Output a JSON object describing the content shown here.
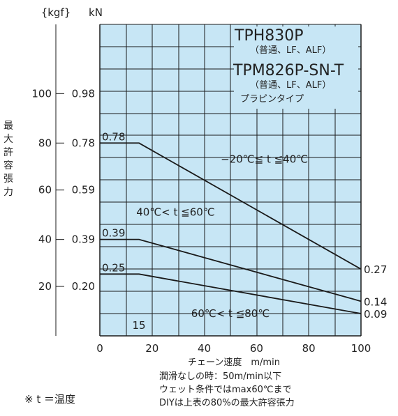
{
  "chart_data": {
    "type": "line",
    "unit_kgf": "{kgf}",
    "unit_kn": "kN",
    "ylabel_chars": [
      "最",
      "大",
      "許",
      "容",
      "張",
      "力"
    ],
    "xlabel": "チェーン速度　m/min",
    "title_lines": [
      {
        "text": "TPH830P",
        "role": "name"
      },
      {
        "text": "（普通、LF、ALF）",
        "role": "sub"
      },
      {
        "text": "TPM826P-SN-T",
        "role": "name"
      },
      {
        "text": "（普通、LF、ALF）",
        "role": "sub"
      },
      {
        "text": "プラピンタイプ",
        "role": "sub"
      }
    ],
    "xlim": [
      0,
      100
    ],
    "ylim_kn": [
      0,
      1.26
    ],
    "x_ticks": [
      "0",
      "20",
      "40",
      "60",
      "80",
      "100"
    ],
    "y_ticks": [
      {
        "kgf": "100",
        "kn": "0.98",
        "v": 0.98
      },
      {
        "kgf": "80",
        "kn": "0.78",
        "v": 0.78
      },
      {
        "kgf": "60",
        "kn": "0.59",
        "v": 0.59
      },
      {
        "kgf": "40",
        "kn": "0.39",
        "v": 0.39
      },
      {
        "kgf": "20",
        "kn": "0.20",
        "v": 0.2
      }
    ],
    "series": [
      {
        "name": "−20℃≦ t ≦40℃",
        "x": [
          0,
          15,
          100
        ],
        "y": [
          0.78,
          0.78,
          0.27
        ],
        "start_label": "0.78",
        "end_label": "0.27",
        "label_x": 63,
        "label_y": 0.715
      },
      {
        "name": "40℃< t ≦60℃",
        "x": [
          0,
          15,
          100
        ],
        "y": [
          0.39,
          0.39,
          0.14
        ],
        "start_label": "0.39",
        "end_label": "0.14",
        "label_x": 29,
        "label_y": 0.5
      },
      {
        "name": "60℃< t ≦80℃",
        "x": [
          0,
          15,
          100
        ],
        "y": [
          0.25,
          0.25,
          0.09
        ],
        "start_label": "0.25",
        "end_label": "0.09",
        "label_x": 50,
        "label_y": 0.09
      }
    ],
    "annotation_15": "15",
    "grid": true
  },
  "notes": [
    "潤滑なしの時：50m/min以下",
    "ウェット条件ではmax60℃まで",
    "DIYは上表の80%の最大許容張力"
  ],
  "footnote": "※ t ＝温度",
  "colors": {
    "plot_bg": "#c7e6f5",
    "grid": "#1a1a1a",
    "line": "#1a1a1a",
    "text": "#222222"
  }
}
